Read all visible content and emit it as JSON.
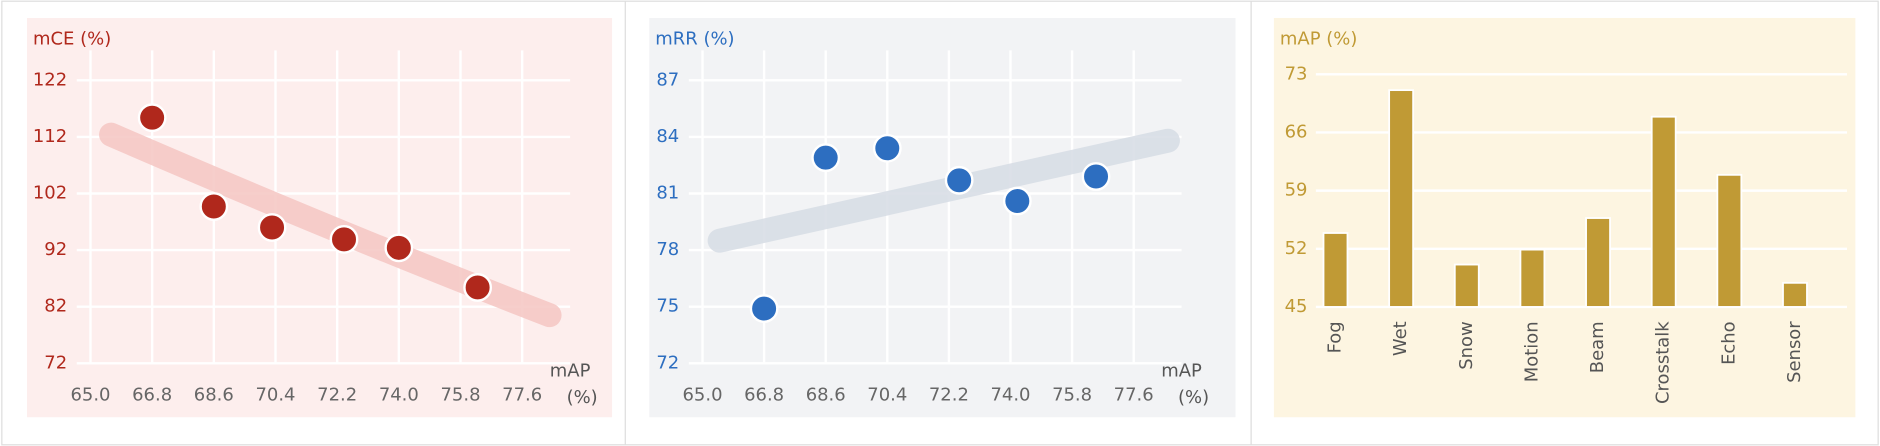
{
  "chart_data": [
    {
      "type": "scatter",
      "y_label": "mCE (%)",
      "x_label": "mAP (%)",
      "xlim": [
        64.6,
        79.0
      ],
      "ylim": [
        72,
        122
      ],
      "xticks": [
        {
          "value": 65.0,
          "label": "65.0"
        },
        66.8,
        68.6,
        70.4,
        72.2,
        {
          "value": 74.0,
          "label": "74.0"
        },
        75.8,
        77.6
      ],
      "yticks": [
        72,
        82,
        92,
        102,
        112,
        122
      ],
      "grid": true,
      "axis_color": "#b0281c",
      "background": "#fdeeed",
      "series": [
        {
          "style": "trend",
          "color": "#f5c6c2",
          "x": [
            65.6,
            72.2,
            78.4
          ],
          "values": [
            112.4,
            95.5,
            80.5
          ]
        },
        {
          "style": "points",
          "color": "#b0281c",
          "x": [
            66.8,
            68.6,
            70.3,
            72.4,
            74.0,
            76.3
          ],
          "values": [
            115.4,
            99.7,
            96.0,
            93.9,
            92.4,
            85.4
          ]
        }
      ]
    },
    {
      "type": "scatter",
      "y_label": "mRR (%)",
      "x_label": "mAP (%)",
      "xlim": [
        64.6,
        79.0
      ],
      "ylim": [
        72,
        87
      ],
      "xticks": [
        {
          "value": 65.0,
          "label": "65.0"
        },
        66.8,
        68.6,
        70.4,
        72.2,
        {
          "value": 74.0,
          "label": "74.0"
        },
        75.8,
        77.6
      ],
      "yticks": [
        72,
        75,
        78,
        81,
        84,
        87
      ],
      "grid": true,
      "axis_color": "#2d6ec0",
      "background": "#f2f3f5",
      "series": [
        {
          "style": "trend",
          "color": "#d6dce4",
          "x": [
            65.5,
            78.6
          ],
          "values": [
            78.5,
            83.8
          ]
        },
        {
          "style": "points",
          "color": "#2d6ec0",
          "x": [
            66.8,
            68.6,
            70.4,
            72.5,
            74.2,
            76.5
          ],
          "values": [
            74.9,
            82.9,
            83.4,
            81.7,
            80.6,
            81.9
          ]
        }
      ]
    },
    {
      "type": "bar",
      "y_label": "mAP (%)",
      "categories": [
        "Fog",
        "Wet",
        "Snow",
        "Motion",
        "Beam",
        "Crosstalk",
        "Echo",
        "Sensor"
      ],
      "values": [
        53.9,
        71.1,
        50.1,
        51.9,
        55.7,
        67.9,
        60.9,
        47.9
      ],
      "ylim": [
        45,
        73
      ],
      "yticks": [
        45,
        52,
        59,
        66,
        73
      ],
      "grid": true,
      "color": "#c09a35",
      "axis_color": "#c09a35",
      "background": "#fdf5e1"
    }
  ]
}
